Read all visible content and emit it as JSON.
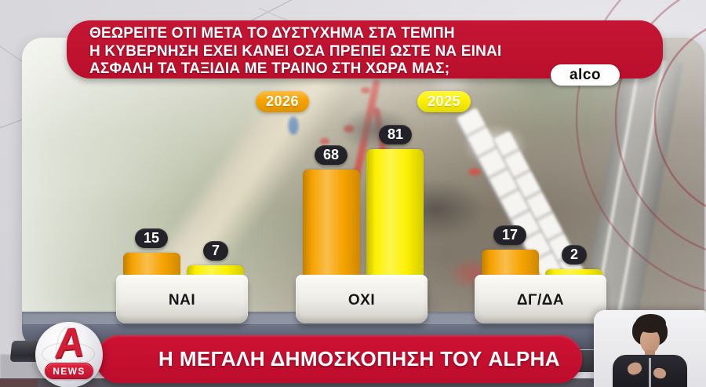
{
  "question_banner": {
    "lines": [
      "ΘΕΩΡΕΙΤΕ ΟΤΙ ΜΕΤΑ ΤΟ ΔΥΣΤΥΧΗΜΑ ΣΤΑ ΤΕΜΠΗ",
      "Η ΚΥΒΕΡΝΗΣΗ ΕΧΕΙ ΚΑΝΕΙ ΟΣΑ ΠΡΕΠΕΙ ΩΣΤΕ ΝΑ ΕΙΝΑΙ",
      "ΑΣΦΑΛΗ ΤΑ ΤΑΞΙΔΙΑ ΜΕ ΤΡΑΙΝΟ ΣΤΗ ΧΩΡΑ ΜΑΣ;"
    ],
    "background_color": "#c11331"
  },
  "pollster_badge": {
    "label": "alco"
  },
  "chart_data": {
    "type": "bar",
    "title": "ΘΕΩΡΕΙΤΕ ΟΤΙ ΜΕΤΑ ΤΟ ΔΥΣΤΥΧΗΜΑ ΣΤΑ ΤΕΜΠΗ Η ΚΥΒΕΡΝΗΣΗ ΕΧΕΙ ΚΑΝΕΙ ΟΣΑ ΠΡΕΠΕΙ ΩΣΤΕ ΝΑ ΕΙΝΑΙ ΑΣΦΑΛΗ ΤΑ ΤΑΞΙΔΙΑ ΜΕ ΤΡΑΙΝΟ ΣΤΗ ΧΩΡΑ ΜΑΣ;",
    "categories": [
      "ΝΑΙ",
      "ΟΧΙ",
      "ΔΓ/ΔΑ"
    ],
    "series": [
      {
        "name": "2026",
        "color": "#f6a300",
        "values": [
          15,
          68,
          17
        ]
      },
      {
        "name": "2025",
        "color": "#fdf100",
        "values": [
          7,
          81,
          2
        ]
      }
    ],
    "value_labels_shown": true,
    "legend_position": "top",
    "grid": false,
    "ylim": [
      0,
      90
    ]
  },
  "footer": {
    "headline": "Η ΜΕΓΑΛΗ ΔΗΜΟΣΚΟΠΗΣΗ ΤΟΥ ALPHA",
    "background_color": "#c50f2e"
  },
  "logo": {
    "letter": "A",
    "news_label": "NEWS",
    "brand_color": "#d31f36"
  }
}
